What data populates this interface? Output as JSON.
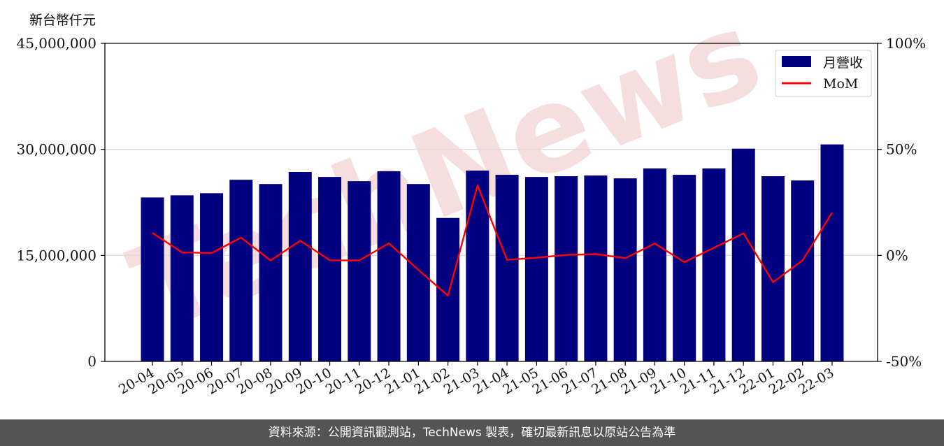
{
  "unit_label": "新台幣仟元",
  "footer_text": "資料來源：公開資訊觀測站，TechNews 製表，確切最新訊息以原站公告為準",
  "watermark_text": "TechNews",
  "colors": {
    "bar": "#000080",
    "line": "#ff0000",
    "grid": "#d8d8d8",
    "footer_bg": "#545454",
    "watermark": "#f6dede"
  },
  "chart_data": {
    "type": "bar",
    "categories": [
      "20-04",
      "20-05",
      "20-06",
      "20-07",
      "20-08",
      "20-09",
      "20-10",
      "20-11",
      "20-12",
      "21-01",
      "21-02",
      "21-03",
      "21-04",
      "21-05",
      "21-06",
      "21-07",
      "21-08",
      "21-09",
      "21-10",
      "21-11",
      "21-12",
      "22-01",
      "22-02",
      "22-03"
    ],
    "series": [
      {
        "name": "月營收",
        "axis": "left",
        "type": "bar",
        "values": [
          23200000,
          23500000,
          23800000,
          25700000,
          25100000,
          26800000,
          26100000,
          25500000,
          26900000,
          25100000,
          20300000,
          27000000,
          26400000,
          26100000,
          26200000,
          26300000,
          25900000,
          27300000,
          26400000,
          27300000,
          30100000,
          26200000,
          25600000,
          30700000
        ]
      },
      {
        "name": "MoM",
        "axis": "right",
        "type": "line",
        "values": [
          10.6,
          1.4,
          1.1,
          8.4,
          -2.4,
          6.9,
          -2.3,
          -2.4,
          5.7,
          -6.8,
          -19.0,
          33.0,
          -2.1,
          -1.1,
          0.2,
          0.6,
          -1.3,
          5.6,
          -3.2,
          3.6,
          10.4,
          -12.6,
          -2.4,
          20.2
        ]
      }
    ],
    "yaxis_left": {
      "ylim": [
        0,
        45000000
      ],
      "ticks": [
        "0",
        "15,000,000",
        "30,000,000",
        "45,000,000"
      ]
    },
    "yaxis_right": {
      "ylim": [
        -50,
        100
      ],
      "ticks": [
        "-50%",
        "0%",
        "50%",
        "100%"
      ]
    },
    "legend": {
      "placement": "top-right",
      "entries": [
        "月營收",
        "MoM"
      ]
    },
    "grid": "horizontal"
  }
}
